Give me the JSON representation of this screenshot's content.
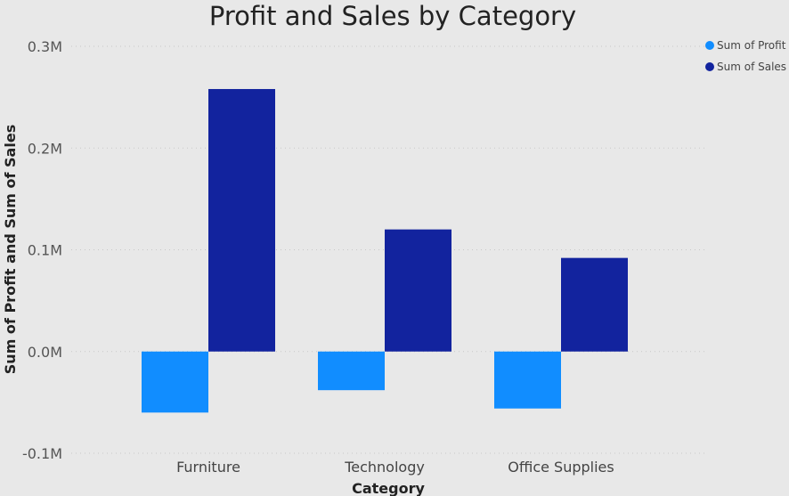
{
  "chart_data": {
    "type": "bar",
    "title": "Profit and Sales by Category",
    "xlabel": "Category",
    "ylabel": "Sum of Profit and Sum of Sales",
    "categories": [
      "Furniture",
      "Technology",
      "Office Supplies"
    ],
    "series": [
      {
        "name": "Sum of Profit",
        "color": "#118dff",
        "values": [
          -60000,
          -38000,
          -56000
        ]
      },
      {
        "name": "Sum of Sales",
        "color": "#12239e",
        "values": [
          258000,
          120000,
          92000
        ]
      }
    ],
    "ylim": [
      -100000,
      300000
    ],
    "yticks": [
      {
        "value": 300000,
        "label": "0.3M"
      },
      {
        "value": 200000,
        "label": "0.2M"
      },
      {
        "value": 100000,
        "label": "0.1M"
      },
      {
        "value": 0,
        "label": "0.0M"
      },
      {
        "value": -100000,
        "label": "-0.1M"
      }
    ],
    "grid": true,
    "legend_position": "top-right"
  }
}
